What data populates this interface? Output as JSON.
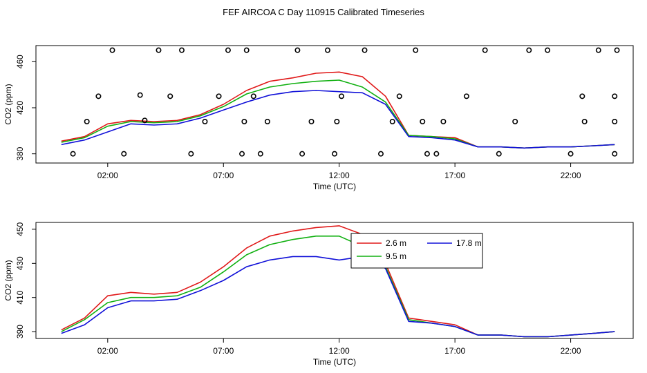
{
  "figure_title": "FEF AIRCOA C  Day 110915  Calibrated Timeseries",
  "colors": {
    "red": "#e01818",
    "green": "#10b010",
    "blue": "#1010d8",
    "axis": "#000000"
  },
  "chart_data": [
    {
      "type": "line+scatter",
      "panel": "top",
      "title": "",
      "xlabel": "Time (UTC)",
      "ylabel": "CO2 (ppm)",
      "xlim": [
        -1.1,
        24.7
      ],
      "ylim": [
        372,
        474
      ],
      "xticks": [
        2,
        7,
        12,
        17,
        22
      ],
      "xtick_labels": [
        "02:00",
        "07:00",
        "12:00",
        "17:00",
        "22:00"
      ],
      "yticks": [
        380,
        420,
        460
      ],
      "ytick_labels": [
        "380",
        "420",
        "460"
      ],
      "grid": false,
      "series": [
        {
          "name": "2.6 m",
          "color": "red",
          "x": [
            0,
            1,
            2,
            3,
            4,
            5,
            6,
            7,
            8,
            9,
            10,
            11,
            12,
            13,
            14,
            15,
            16,
            17,
            18,
            19,
            20,
            21,
            22,
            23,
            23.9
          ],
          "values": [
            391,
            395,
            406,
            409,
            408,
            409,
            414,
            423,
            435,
            443,
            446,
            450,
            451,
            447,
            430,
            396,
            395,
            394,
            386,
            386,
            385,
            386,
            386,
            387,
            388
          ]
        },
        {
          "name": "9.5 m",
          "color": "green",
          "x": [
            0,
            1,
            2,
            3,
            4,
            5,
            6,
            7,
            8,
            9,
            10,
            11,
            12,
            13,
            14,
            15,
            16,
            17,
            18,
            19,
            20,
            21,
            22,
            23,
            23.9
          ],
          "values": [
            390,
            394,
            404,
            408,
            407,
            408,
            413,
            421,
            432,
            438,
            441,
            443,
            444,
            438,
            425,
            396,
            395,
            393,
            386,
            386,
            385,
            386,
            386,
            387,
            388
          ]
        },
        {
          "name": "17.8 m",
          "color": "blue",
          "x": [
            0,
            1,
            2,
            3,
            4,
            5,
            6,
            7,
            8,
            9,
            10,
            11,
            12,
            13,
            14,
            15,
            16,
            17,
            18,
            19,
            20,
            21,
            22,
            23,
            23.9
          ],
          "values": [
            388,
            392,
            399,
            406,
            405,
            406,
            411,
            418,
            425,
            431,
            434,
            435,
            434,
            433,
            423,
            395,
            394,
            392,
            386,
            386,
            385,
            386,
            386,
            387,
            388
          ]
        },
        {
          "name": "flags",
          "color": "black",
          "marker": "circle",
          "x": [
            0.5,
            1.1,
            1.6,
            2.2,
            2.7,
            3.4,
            3.6,
            4.2,
            4.7,
            5.2,
            5.6,
            6.2,
            6.8,
            7.2,
            7.8,
            7.9,
            8.0,
            8.3,
            8.6,
            8.9,
            10.2,
            10.4,
            10.8,
            11.5,
            11.8,
            11.9,
            12.1,
            13.1,
            13.8,
            14.3,
            14.6,
            15.3,
            15.6,
            15.8,
            16.2,
            16.5,
            17.5,
            18.3,
            18.9,
            19.6,
            20.2,
            21.0,
            22.0,
            22.5,
            22.6,
            23.2,
            23.9,
            23.9,
            23.9,
            24.0
          ],
          "values": [
            380,
            408,
            430,
            470,
            380,
            431,
            409,
            470,
            430,
            470,
            380,
            408,
            430,
            470,
            380,
            408,
            470,
            430,
            380,
            408,
            470,
            380,
            408,
            470,
            380,
            408,
            430,
            470,
            380,
            408,
            430,
            470,
            408,
            380,
            380,
            408,
            430,
            470,
            380,
            408,
            470,
            470,
            380,
            430,
            408,
            470,
            430,
            408,
            380,
            470
          ]
        }
      ]
    },
    {
      "type": "line",
      "panel": "bottom",
      "title": "",
      "xlabel": "Time (UTC)",
      "ylabel": "CO2 (ppm)",
      "xlim": [
        -1.1,
        24.7
      ],
      "ylim": [
        386,
        454
      ],
      "xticks": [
        2,
        7,
        12,
        17,
        22
      ],
      "xtick_labels": [
        "02:00",
        "07:00",
        "12:00",
        "17:00",
        "22:00"
      ],
      "yticks": [
        390,
        410,
        430,
        450
      ],
      "ytick_labels": [
        "390",
        "410",
        "430",
        "450"
      ],
      "grid": false,
      "legend": {
        "placement": "top-right-center",
        "entries": [
          {
            "label": "2.6 m",
            "color": "red"
          },
          {
            "label": "17.8 m",
            "color": "blue"
          },
          {
            "label": "9.5 m",
            "color": "green"
          }
        ]
      },
      "series": [
        {
          "name": "2.6 m",
          "color": "red",
          "x": [
            0,
            1,
            2,
            3,
            4,
            5,
            6,
            7,
            8,
            9,
            10,
            11,
            12,
            13,
            14,
            15,
            16,
            17,
            18,
            19,
            20,
            21,
            22,
            23,
            23.9
          ],
          "values": [
            391,
            398,
            411,
            413,
            412,
            413,
            419,
            428,
            439,
            446,
            449,
            451,
            452,
            447,
            430,
            398,
            396,
            394,
            388,
            388,
            387,
            387,
            388,
            389,
            390
          ]
        },
        {
          "name": "9.5 m",
          "color": "green",
          "x": [
            0,
            1,
            2,
            3,
            4,
            5,
            6,
            7,
            8,
            9,
            10,
            11,
            12,
            13,
            14,
            15,
            16,
            17,
            18,
            19,
            20,
            21,
            22,
            23,
            23.9
          ],
          "values": [
            390,
            397,
            407,
            410,
            410,
            411,
            416,
            425,
            435,
            441,
            444,
            446,
            446,
            440,
            428,
            397,
            395,
            393,
            388,
            388,
            387,
            387,
            388,
            389,
            390
          ]
        },
        {
          "name": "17.8 m",
          "color": "blue",
          "x": [
            0,
            1,
            2,
            3,
            4,
            5,
            6,
            7,
            8,
            9,
            10,
            11,
            12,
            13,
            14,
            15,
            16,
            17,
            18,
            19,
            20,
            21,
            22,
            23,
            23.9
          ],
          "values": [
            389,
            394,
            404,
            408,
            408,
            409,
            414,
            420,
            428,
            432,
            434,
            434,
            432,
            434,
            427,
            396,
            395,
            393,
            388,
            388,
            387,
            387,
            388,
            389,
            390
          ]
        }
      ]
    }
  ]
}
